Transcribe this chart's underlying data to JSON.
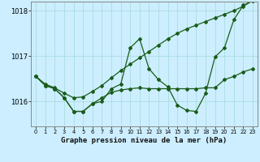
{
  "title": "Graphe pression niveau de la mer (hPa)",
  "bg_color": "#cceeff",
  "grid_color": "#aadddd",
  "line_color": "#1a5c1a",
  "x_ticks": [
    0,
    1,
    2,
    3,
    4,
    5,
    6,
    7,
    8,
    9,
    10,
    11,
    12,
    13,
    14,
    15,
    16,
    17,
    18,
    19,
    20,
    21,
    22,
    23
  ],
  "ylim": [
    1015.45,
    1018.2
  ],
  "yticks": [
    1016,
    1017,
    1018
  ],
  "line1_y": [
    1016.55,
    1016.38,
    1016.3,
    1016.18,
    1016.08,
    1016.1,
    1016.22,
    1016.35,
    1016.52,
    1016.68,
    1016.82,
    1016.96,
    1017.1,
    1017.24,
    1017.38,
    1017.5,
    1017.6,
    1017.68,
    1017.76,
    1017.84,
    1017.92,
    1018.0,
    1018.1,
    1018.22
  ],
  "line2_y": [
    1016.55,
    1016.35,
    1016.28,
    1016.08,
    1015.78,
    1015.78,
    1015.95,
    1016.0,
    1016.28,
    1016.38,
    1017.18,
    1017.38,
    1016.72,
    1016.48,
    1016.32,
    1015.92,
    1015.8,
    1015.78,
    1016.18,
    1016.98,
    1017.18,
    1017.8,
    1018.12,
    1018.22
  ],
  "line3_y": [
    1016.55,
    1016.35,
    1016.28,
    1016.08,
    1015.78,
    1015.78,
    1015.95,
    1016.08,
    1016.2,
    1016.25,
    1016.28,
    1016.3,
    1016.28,
    1016.28,
    1016.28,
    1016.28,
    1016.28,
    1016.28,
    1016.3,
    1016.3,
    1016.48,
    1016.55,
    1016.65,
    1016.72
  ]
}
